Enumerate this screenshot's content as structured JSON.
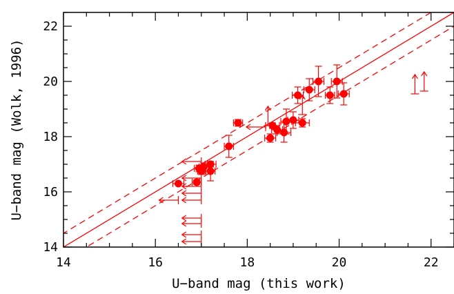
{
  "chart_data": {
    "type": "scatter",
    "xlabel": "U−band mag (this work)",
    "ylabel": "U−band mag (Wolk, 1996)",
    "xlim": [
      14,
      22.5
    ],
    "ylim": [
      14,
      22.5
    ],
    "x_ticks": [
      "14",
      "16",
      "18",
      "20",
      "22"
    ],
    "y_ticks": [
      "14",
      "16",
      "18",
      "20",
      "22"
    ],
    "grid": false,
    "color": "#ff0000",
    "reference_lines": [
      {
        "style": "solid",
        "relation": "y = x"
      },
      {
        "style": "dashed",
        "relation": "y = x + 0.5"
      },
      {
        "style": "dashed",
        "relation": "y = x - 0.5"
      }
    ],
    "points": [
      {
        "x": 16.5,
        "y": 16.3,
        "xerr": 0.12,
        "yerr": 0.0
      },
      {
        "x": 16.9,
        "y": 16.35,
        "xerr": 0.1,
        "yerr": 0.08
      },
      {
        "x": 16.95,
        "y": 16.85,
        "xerr": 0.1,
        "yerr": 0.12
      },
      {
        "x": 17.05,
        "y": 16.9,
        "xerr": 0.1,
        "yerr": 0.15
      },
      {
        "x": 17.0,
        "y": 16.75,
        "xerr": 0.08,
        "yerr": 0.12
      },
      {
        "x": 17.2,
        "y": 17.0,
        "xerr": 0.12,
        "yerr": 0.1
      },
      {
        "x": 17.2,
        "y": 16.75,
        "xerr": 0.1,
        "yerr": 0.35
      },
      {
        "x": 17.6,
        "y": 17.65,
        "xerr": 0.1,
        "yerr": 0.4
      },
      {
        "x": 17.8,
        "y": 18.5,
        "xerr": 0.1,
        "yerr": 0.12
      },
      {
        "x": 18.5,
        "y": 17.95,
        "xerr": 0.12,
        "yerr": 0.15
      },
      {
        "x": 18.55,
        "y": 18.4,
        "xerr": 0.15,
        "yerr": 0.1
      },
      {
        "x": 18.65,
        "y": 18.25,
        "xerr": 0.12,
        "yerr": 0.15
      },
      {
        "x": 18.8,
        "y": 18.15,
        "xerr": 0.15,
        "yerr": 0.35
      },
      {
        "x": 18.85,
        "y": 18.55,
        "xerr": 0.12,
        "yerr": 0.45
      },
      {
        "x": 19.0,
        "y": 18.6,
        "xerr": 0.12,
        "yerr": 0.3
      },
      {
        "x": 19.1,
        "y": 19.5,
        "xerr": 0.12,
        "yerr": 0.3
      },
      {
        "x": 19.2,
        "y": 18.5,
        "xerr": 0.15,
        "yerr": 0.15
      },
      {
        "x": 19.35,
        "y": 19.7,
        "xerr": 0.12,
        "yerr": 0.4
      },
      {
        "x": 19.55,
        "y": 20.0,
        "xerr": 0.12,
        "yerr": 0.55
      },
      {
        "x": 19.8,
        "y": 19.5,
        "xerr": 0.1,
        "yerr": 0.3
      },
      {
        "x": 19.95,
        "y": 20.0,
        "xerr": 0.12,
        "yerr": 0.6
      },
      {
        "x": 20.1,
        "y": 19.55,
        "xerr": 0.12,
        "yerr": 0.4
      }
    ],
    "upper_limits": [
      {
        "x": 17.0,
        "y": 17.1,
        "direction": "left"
      },
      {
        "x": 17.0,
        "y": 16.5,
        "direction": "left"
      },
      {
        "x": 17.0,
        "y": 16.2,
        "direction": "left"
      },
      {
        "x": 17.0,
        "y": 15.95,
        "direction": "left"
      },
      {
        "x": 17.0,
        "y": 15.7,
        "direction": "left"
      },
      {
        "x": 17.0,
        "y": 15.05,
        "direction": "left"
      },
      {
        "x": 17.0,
        "y": 14.85,
        "direction": "left"
      },
      {
        "x": 17.0,
        "y": 14.45,
        "direction": "left"
      },
      {
        "x": 17.0,
        "y": 14.2,
        "direction": "left"
      },
      {
        "x": 16.5,
        "y": 15.7,
        "direction": "left"
      },
      {
        "x": 18.4,
        "y": 18.35,
        "direction": "left"
      }
    ],
    "lower_limits": [
      {
        "x": 18.45,
        "y": 18.4,
        "direction": "up"
      },
      {
        "x": 19.2,
        "y": 18.8,
        "direction": "up"
      },
      {
        "x": 21.65,
        "y": 19.55,
        "direction": "up"
      },
      {
        "x": 21.85,
        "y": 19.65,
        "direction": "up"
      }
    ]
  }
}
